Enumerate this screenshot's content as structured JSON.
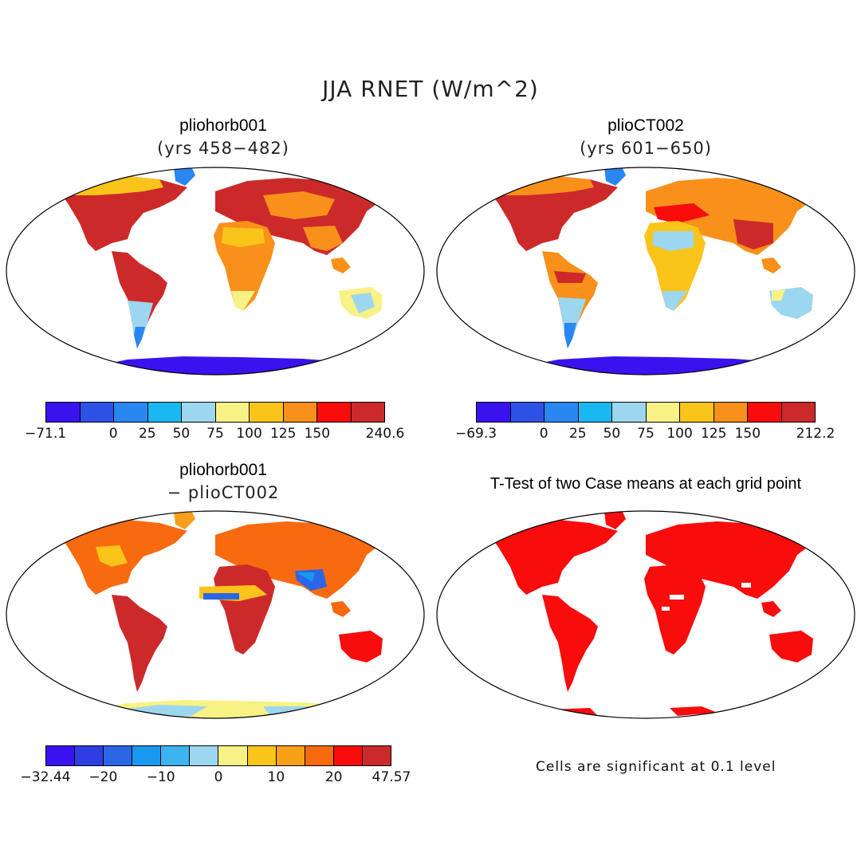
{
  "figure": {
    "title": "JJA RNET (W/m^2)"
  },
  "panels": {
    "p1": {
      "title": "pliohorb001",
      "subtitle": "(yrs 458−482)",
      "colorbar": {
        "colors": [
          "#3a12f0",
          "#2e52e6",
          "#2a86f0",
          "#1ab8f2",
          "#9dd6ef",
          "#f8f286",
          "#fbc41a",
          "#f8901a",
          "#f80c0c",
          "#cc2a2a"
        ],
        "labels": [
          "−71.1",
          "0",
          "25",
          "50",
          "75",
          "100",
          "125",
          "150",
          "240.6"
        ]
      }
    },
    "p2": {
      "title": "plioCT002",
      "subtitle": "(yrs 601−650)",
      "colorbar": {
        "colors": [
          "#3a12f0",
          "#2e52e6",
          "#2a86f0",
          "#1ab8f2",
          "#9dd6ef",
          "#f8f286",
          "#fbc41a",
          "#f8901a",
          "#f80c0c",
          "#cc2a2a"
        ],
        "labels": [
          "−69.3",
          "0",
          "25",
          "50",
          "75",
          "100",
          "125",
          "150",
          "212.2"
        ]
      }
    },
    "p3": {
      "title": "pliohorb001",
      "subtitle": "− plioCT002",
      "colorbar": {
        "colors": [
          "#3a12f0",
          "#2e3ee2",
          "#2a66e6",
          "#1a98f0",
          "#3cb4f0",
          "#9dd6ef",
          "#f8f286",
          "#fbc41a",
          "#f8a01a",
          "#f86a10",
          "#f80c0c",
          "#cc2a2a"
        ],
        "labels": [
          "−32.44",
          "−20",
          "−10",
          "0",
          "10",
          "20",
          "47.57"
        ]
      }
    },
    "p4": {
      "title": "T-Test of two Case means at each grid point",
      "note": "Cells are significant at 0.1 level"
    }
  }
}
